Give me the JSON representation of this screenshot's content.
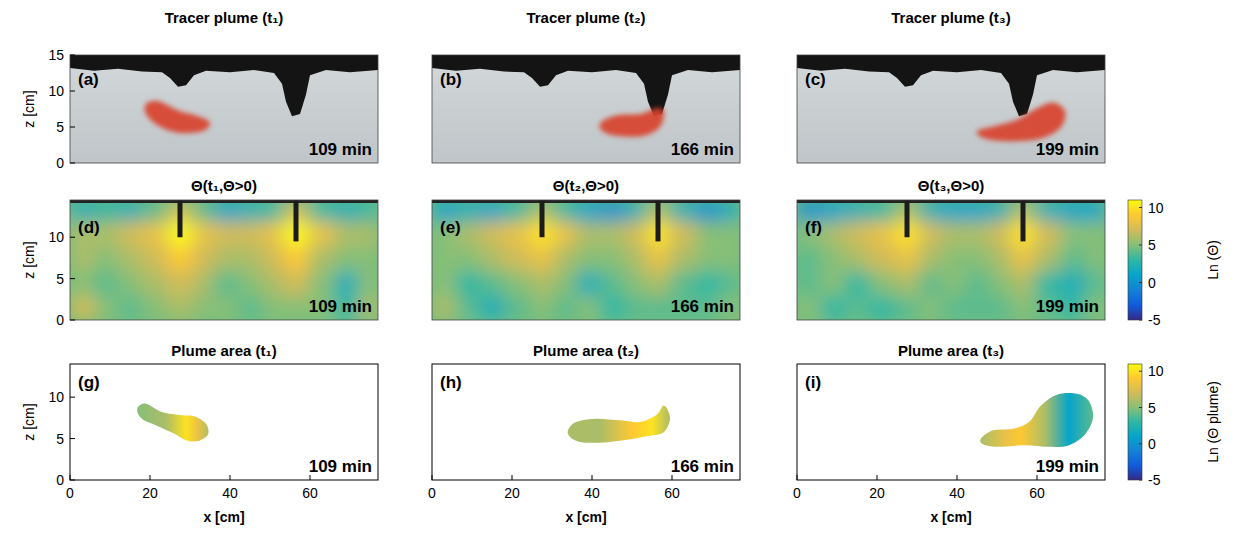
{
  "chart_data": [
    {
      "type": "photo",
      "title": "Tracer plume (t₁)",
      "label": "(a)",
      "annotation": "109 min",
      "ylabel": "z [cm]",
      "xlim": [
        0,
        77
      ],
      "ylim": [
        0,
        15
      ],
      "yticks": [
        0,
        5,
        10,
        15
      ],
      "tick_labels": "y",
      "color": "#d8432a",
      "surface": {
        "x": [
          0,
          6,
          12,
          18,
          23,
          25,
          27,
          29,
          31,
          34,
          40,
          46,
          51,
          53,
          54,
          55.5,
          57.5,
          59,
          60,
          64,
          70,
          77
        ],
        "z": [
          13.2,
          12.8,
          13.1,
          12.7,
          12.6,
          11.8,
          10.6,
          10.8,
          12.2,
          12.8,
          12.6,
          12.9,
          12.5,
          11,
          8.5,
          6.5,
          6.8,
          9.5,
          12.2,
          12.9,
          12.6,
          12.9
        ]
      },
      "plume": {
        "x": [
          19,
          22,
          27,
          32,
          35,
          33,
          27,
          22,
          19
        ],
        "z": [
          8.2,
          8.6,
          7.3,
          6.5,
          5.6,
          4.4,
          4.2,
          5.2,
          6.8
        ]
      }
    },
    {
      "type": "photo",
      "title": "Tracer plume (t₂)",
      "label": "(b)",
      "annotation": "166 min",
      "xlim": [
        0,
        77
      ],
      "ylim": [
        0,
        15
      ],
      "tick_labels": false,
      "color": "#d8432a",
      "surface": {
        "x": [
          0,
          6,
          12,
          18,
          23,
          25,
          27,
          29,
          31,
          34,
          40,
          46,
          51,
          53,
          54,
          55.5,
          57.5,
          59,
          60,
          64,
          70,
          77
        ],
        "z": [
          13.2,
          12.8,
          13.1,
          12.7,
          12.6,
          11.8,
          10.6,
          10.8,
          12.2,
          12.8,
          12.6,
          12.9,
          12.5,
          11,
          8.5,
          6.5,
          6.8,
          9.5,
          12.2,
          12.9,
          12.6,
          12.9
        ]
      },
      "plume": {
        "x": [
          42,
          46,
          52,
          56,
          58,
          57,
          53,
          47,
          43
        ],
        "z": [
          5.5,
          6.6,
          6.8,
          7.6,
          7.2,
          5,
          3.8,
          3.7,
          4.3
        ]
      }
    },
    {
      "type": "photo",
      "title": "Tracer plume (t₃)",
      "label": "(c)",
      "annotation": "199 min",
      "xlim": [
        0,
        77
      ],
      "ylim": [
        0,
        15
      ],
      "tick_labels": false,
      "color": "#d8432a",
      "surface": {
        "x": [
          0,
          6,
          12,
          18,
          23,
          25,
          27,
          29,
          31,
          34,
          40,
          46,
          51,
          53,
          54,
          55.5,
          57.5,
          59,
          60,
          64,
          70,
          77
        ],
        "z": [
          13.2,
          12.8,
          13.1,
          12.7,
          12.6,
          11.8,
          10.6,
          10.8,
          12.2,
          12.8,
          12.6,
          12.9,
          12.5,
          11,
          8.5,
          6.5,
          6.8,
          9.5,
          12.2,
          12.9,
          12.6,
          12.9
        ]
      },
      "plume": {
        "x": [
          45,
          50,
          55,
          60,
          64,
          67,
          66,
          61,
          53,
          47
        ],
        "z": [
          4.4,
          5.2,
          6,
          7.6,
          8.4,
          7.2,
          5,
          3.4,
          3,
          3.4
        ]
      }
    },
    {
      "type": "heatmap",
      "title": "Θ(t₁,Θ>0)",
      "label": "(d)",
      "annotation": "109 min",
      "ylabel": "z [cm]",
      "xlim": [
        0,
        77
      ],
      "ylim": [
        0,
        14.5
      ],
      "yticks": [
        0,
        5,
        10
      ],
      "tick_labels": "y",
      "color_range": [
        -5,
        11
      ],
      "cells": {
        "x_edges": [
          0,
          6,
          12,
          18,
          24.5,
          30.5,
          36,
          42,
          48,
          53.5,
          59.5,
          66,
          72,
          77
        ],
        "z_edges": [
          0,
          3,
          6,
          9,
          12,
          14.5
        ],
        "values": [
          [
            7,
            5,
            4,
            5,
            6,
            5,
            5,
            4,
            5,
            5,
            5,
            3,
            6
          ],
          [
            5,
            4,
            5,
            6,
            7,
            6,
            4,
            5,
            6,
            7,
            5,
            2,
            5
          ],
          [
            6,
            5,
            6,
            7,
            9,
            7,
            6,
            6,
            7,
            9,
            6,
            5,
            5
          ],
          [
            6,
            6,
            7,
            8,
            11,
            8,
            7,
            7,
            8,
            11,
            8,
            6,
            6
          ],
          [
            2,
            3,
            2,
            4,
            7,
            4,
            1,
            2,
            3,
            7,
            3,
            2,
            3
          ]
        ]
      },
      "wells": {
        "x": [
          27.5,
          56.5
        ],
        "bottom": [
          10,
          9.5
        ]
      }
    },
    {
      "type": "heatmap",
      "title": "Θ(t₂,Θ>0)",
      "label": "(e)",
      "annotation": "166 min",
      "xlim": [
        0,
        77
      ],
      "ylim": [
        0,
        14.5
      ],
      "tick_labels": false,
      "color_range": [
        -5,
        11
      ],
      "cells": {
        "x_edges": [
          0,
          6,
          12,
          18,
          24.5,
          30.5,
          36,
          42,
          48,
          53.5,
          59.5,
          66,
          72,
          77
        ],
        "z_edges": [
          0,
          3,
          6,
          9,
          12,
          14.5
        ],
        "values": [
          [
            6,
            4,
            2,
            4,
            5,
            4,
            5,
            3,
            4,
            4,
            4,
            4,
            5
          ],
          [
            5,
            3,
            4,
            5,
            6,
            5,
            2,
            4,
            5,
            6,
            4,
            3,
            4
          ],
          [
            5,
            5,
            6,
            7,
            8,
            6,
            5,
            5,
            6,
            8,
            6,
            5,
            5
          ],
          [
            5,
            6,
            7,
            8,
            10,
            8,
            6,
            6,
            7,
            10,
            7,
            5,
            5
          ],
          [
            1,
            2,
            1,
            3,
            6,
            3,
            1,
            0,
            2,
            6,
            2,
            0,
            2
          ]
        ]
      },
      "wells": {
        "x": [
          27.5,
          56.5
        ],
        "bottom": [
          10,
          9.5
        ]
      }
    },
    {
      "type": "heatmap",
      "title": "Θ(t₃,Θ>0)",
      "label": "(f)",
      "annotation": "199 min",
      "xlim": [
        0,
        77
      ],
      "ylim": [
        0,
        14.5
      ],
      "tick_labels": false,
      "color_range": [
        -5,
        11
      ],
      "cells": {
        "x_edges": [
          0,
          6,
          12,
          18,
          24.5,
          30.5,
          36,
          42,
          48,
          53.5,
          59.5,
          66,
          72,
          77
        ],
        "z_edges": [
          0,
          3,
          6,
          9,
          12,
          14.5
        ],
        "values": [
          [
            5,
            3,
            4,
            3,
            4,
            5,
            4,
            4,
            4,
            5,
            4,
            3,
            5
          ],
          [
            4,
            5,
            3,
            5,
            6,
            4,
            5,
            4,
            5,
            6,
            3,
            2,
            4
          ],
          [
            4,
            5,
            6,
            7,
            8,
            6,
            5,
            5,
            6,
            8,
            6,
            4,
            5
          ],
          [
            5,
            6,
            7,
            8,
            10,
            7,
            6,
            6,
            7,
            10,
            7,
            5,
            5
          ],
          [
            0,
            1,
            2,
            3,
            6,
            2,
            1,
            1,
            2,
            6,
            2,
            1,
            1
          ]
        ]
      },
      "wells": {
        "x": [
          27.5,
          56.5
        ],
        "bottom": [
          10,
          9.5
        ]
      },
      "colorbar": {
        "label": "Ln (Θ)",
        "ticks": [
          -5,
          0,
          5,
          10
        ]
      }
    },
    {
      "type": "area",
      "title": "Plume area (t₁)",
      "label": "(g)",
      "annotation": "109 min",
      "xlabel": "x [cm]",
      "ylabel": "z [cm]",
      "xlim": [
        0,
        77
      ],
      "ylim": [
        0,
        14
      ],
      "xticks": [
        0,
        20,
        40,
        60
      ],
      "yticks": [
        0,
        5,
        10
      ],
      "tick_labels": true,
      "color_range": [
        -5,
        11
      ],
      "plume": {
        "x": [
          17,
          19,
          23,
          28,
          31,
          34,
          34.5,
          32,
          29,
          26,
          22,
          18.5,
          17
        ],
        "z": [
          8.8,
          9.2,
          8.2,
          7.8,
          7.7,
          6.8,
          5.5,
          4.7,
          4.8,
          5.6,
          6.5,
          7.2,
          8
        ]
      },
      "color_profile": {
        "x": [
          17,
          24,
          29,
          32,
          35
        ],
        "values": [
          5,
          6,
          10,
          8,
          6
        ]
      }
    },
    {
      "type": "area",
      "title": "Plume area (t₂)",
      "label": "(h)",
      "annotation": "166 min",
      "xlabel": "x [cm]",
      "xlim": [
        0,
        77
      ],
      "ylim": [
        0,
        14
      ],
      "xticks": [
        0,
        20,
        40,
        60
      ],
      "tick_labels": "x",
      "color_range": [
        -5,
        11
      ],
      "plume": {
        "x": [
          34,
          36,
          41,
          47,
          52,
          56,
          58,
          59.5,
          58,
          54,
          48,
          42,
          37,
          34.5
        ],
        "z": [
          6,
          7,
          7.4,
          7.2,
          7,
          7.8,
          9,
          7.5,
          5.8,
          5.3,
          4.8,
          4.5,
          4.6,
          5.2
        ]
      },
      "color_profile": {
        "x": [
          34,
          42,
          50,
          55,
          59.5
        ],
        "values": [
          6,
          6,
          9,
          10,
          6
        ]
      }
    },
    {
      "type": "area",
      "title": "Plume area (t₃)",
      "label": "(i)",
      "annotation": "199 min",
      "xlabel": "x [cm]",
      "xlim": [
        0,
        77
      ],
      "ylim": [
        0,
        14
      ],
      "xticks": [
        0,
        20,
        40,
        60
      ],
      "tick_labels": "x",
      "color_range": [
        -5,
        11
      ],
      "plume": {
        "x": [
          46,
          49,
          54,
          58,
          61,
          65,
          70,
          73,
          74,
          72,
          68,
          63,
          57,
          50,
          46.5
        ],
        "z": [
          5,
          6,
          6.2,
          7,
          9,
          10.3,
          10.4,
          9.5,
          7.5,
          5.5,
          4.2,
          4,
          4.2,
          4,
          4.3
        ]
      },
      "color_profile": {
        "x": [
          46,
          52,
          56,
          62,
          68,
          74
        ],
        "values": [
          6,
          8,
          9,
          6,
          1,
          4
        ]
      },
      "colorbar": {
        "label": "Ln (Θ plume)",
        "ticks": [
          -5,
          0,
          5,
          10
        ]
      }
    }
  ]
}
